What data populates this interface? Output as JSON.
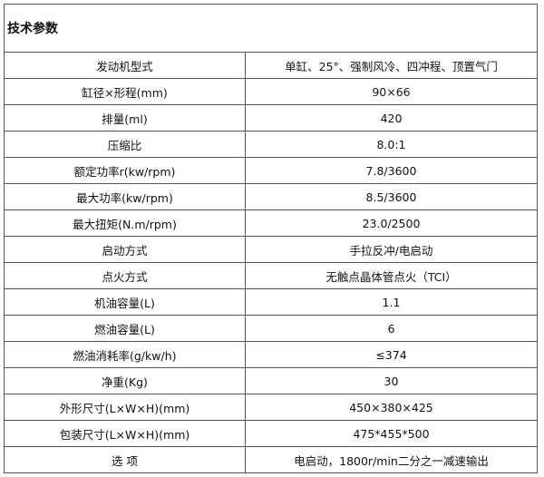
{
  "title": "技术参数",
  "rows": [
    {
      "k": "发动机型式",
      "v": "单缸、25°、强制风冷、四冲程、顶置气门"
    },
    {
      "k": "缸径×形程(mm)",
      "v": "90×66"
    },
    {
      "k": "排量(ml)",
      "v": "420"
    },
    {
      "k": "压缩比",
      "v": "8.0:1"
    },
    {
      "k": "额定功率r(kw/rpm)",
      "v": "7.8/3600"
    },
    {
      "k": "最大功率(kw/rpm)",
      "v": "8.5/3600"
    },
    {
      "k": "最大扭矩(N.m/rpm)",
      "v": "23.0/2500"
    },
    {
      "k": "启动方式",
      "v": "手拉反冲/电启动"
    },
    {
      "k": "点火方式",
      "v": "无触点晶体管点火（TCI）"
    },
    {
      "k": "机油容量(L)",
      "v": "1.1"
    },
    {
      "k": "燃油容量(L)",
      "v": "6"
    },
    {
      "k": "燃油消耗率(g/kw/h)",
      "v": "≤374"
    },
    {
      "k": "净重(Kg)",
      "v": "30"
    },
    {
      "k": "外形尺寸(L×W×H)(mm)",
      "v": "450×380×425"
    },
    {
      "k": "包装尺寸(L×W×H)(mm)",
      "v": "475*455*500"
    },
    {
      "k": "选  项",
      "v": "电启动，1800r/min二分之一减速输出"
    }
  ]
}
